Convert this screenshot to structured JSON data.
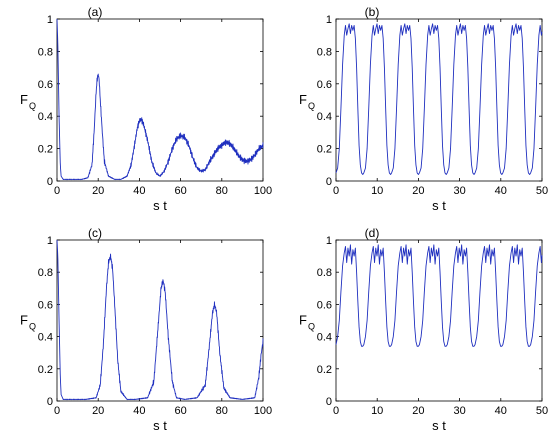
{
  "chart_data": [
    {
      "type": "line",
      "panel_label": "(a)",
      "xlabel": "s t",
      "ylabel": "F",
      "ylabel_sub": "Q",
      "xlim": [
        0,
        100
      ],
      "ylim": [
        0,
        1
      ],
      "xticks": [
        0,
        20,
        40,
        60,
        80,
        100
      ],
      "yticks": [
        0,
        0.2,
        0.4,
        0.6,
        0.8,
        1
      ],
      "grid": false,
      "line_color": "#1f2fbf",
      "noise": 0.02,
      "noise_period": 0.55,
      "series": [
        {
          "x": [
            0,
            0.4,
            1,
            1.6,
            2,
            3,
            4,
            6,
            8,
            12,
            15,
            17,
            18,
            19,
            19.5,
            20,
            20.5,
            21,
            22,
            23,
            25,
            28,
            31,
            34,
            36,
            38,
            39,
            40,
            41,
            42,
            44,
            46,
            48,
            50,
            52,
            54,
            56,
            58,
            60,
            62,
            64,
            66,
            68,
            70,
            72,
            74,
            76,
            78,
            80,
            82,
            84,
            86,
            88,
            90,
            92,
            94,
            96,
            98,
            100
          ],
          "y": [
            1.0,
            0.85,
            0.4,
            0.1,
            0.03,
            0.01,
            0.01,
            0.01,
            0.01,
            0.01,
            0.02,
            0.1,
            0.3,
            0.55,
            0.63,
            0.66,
            0.62,
            0.5,
            0.3,
            0.12,
            0.03,
            0.01,
            0.01,
            0.03,
            0.1,
            0.25,
            0.33,
            0.37,
            0.38,
            0.35,
            0.25,
            0.12,
            0.05,
            0.03,
            0.06,
            0.12,
            0.2,
            0.26,
            0.28,
            0.27,
            0.22,
            0.14,
            0.08,
            0.06,
            0.07,
            0.12,
            0.16,
            0.2,
            0.22,
            0.24,
            0.23,
            0.2,
            0.16,
            0.13,
            0.12,
            0.13,
            0.16,
            0.2,
            0.22
          ]
        }
      ]
    },
    {
      "type": "line",
      "panel_label": "(b)",
      "xlabel": "s t",
      "ylabel": "F",
      "ylabel_sub": "Q",
      "xlim": [
        0,
        50
      ],
      "ylim": [
        0,
        1
      ],
      "xticks": [
        0,
        10,
        20,
        30,
        40,
        50
      ],
      "yticks": [
        0,
        0.2,
        0.4,
        0.6,
        0.8,
        1
      ],
      "grid": false,
      "line_color": "#1f2fbf",
      "noise": 0.0,
      "noise_period": 0.5,
      "periodic": {
        "period": 6.75,
        "x_end": 50,
        "profile": {
          "t": [
            0,
            0.4,
            0.8,
            1.2,
            1.6,
            2.0,
            2.3,
            2.6,
            2.9,
            3.2,
            3.5,
            3.8,
            4.1,
            4.4,
            4.7,
            5.0,
            5.3,
            5.6,
            5.9,
            6.2,
            6.5,
            6.75
          ],
          "y": [
            0.05,
            0.08,
            0.2,
            0.45,
            0.72,
            0.9,
            0.96,
            0.9,
            0.94,
            0.97,
            0.91,
            0.96,
            0.93,
            0.96,
            0.88,
            0.7,
            0.45,
            0.22,
            0.1,
            0.05,
            0.04,
            0.05
          ]
        }
      }
    },
    {
      "type": "line",
      "panel_label": "(c)",
      "xlabel": "s t",
      "ylabel": "F",
      "ylabel_sub": "Q",
      "xlim": [
        0,
        100
      ],
      "ylim": [
        0,
        1
      ],
      "xticks": [
        0,
        20,
        40,
        60,
        80,
        100
      ],
      "yticks": [
        0,
        0.2,
        0.4,
        0.6,
        0.8,
        1
      ],
      "grid": false,
      "line_color": "#1f2fbf",
      "noise": 0.02,
      "noise_period": 0.55,
      "series": [
        {
          "x": [
            0,
            0.4,
            1,
            1.6,
            2,
            3,
            4,
            8,
            14,
            19,
            21,
            22.5,
            24,
            25,
            26,
            27,
            28,
            29.5,
            31,
            34,
            38,
            44,
            47,
            49,
            50.5,
            51.5,
            52.5,
            54,
            56,
            58,
            62,
            68,
            72,
            74,
            75.5,
            76.5,
            77.5,
            79,
            81,
            84,
            90,
            96,
            98,
            99,
            100
          ],
          "y": [
            1.0,
            0.9,
            0.5,
            0.15,
            0.04,
            0.01,
            0.01,
            0.01,
            0.01,
            0.02,
            0.1,
            0.35,
            0.7,
            0.86,
            0.9,
            0.82,
            0.6,
            0.25,
            0.06,
            0.01,
            0.01,
            0.02,
            0.12,
            0.45,
            0.7,
            0.75,
            0.68,
            0.4,
            0.12,
            0.02,
            0.01,
            0.02,
            0.1,
            0.35,
            0.55,
            0.6,
            0.55,
            0.3,
            0.08,
            0.02,
            0.01,
            0.02,
            0.15,
            0.28,
            0.37
          ]
        }
      ]
    },
    {
      "type": "line",
      "panel_label": "(d)",
      "xlabel": "s t",
      "ylabel": "F",
      "ylabel_sub": "Q",
      "xlim": [
        0,
        50
      ],
      "ylim": [
        0,
        1
      ],
      "xticks": [
        0,
        10,
        20,
        30,
        40,
        50
      ],
      "yticks": [
        0,
        0.2,
        0.4,
        0.6,
        0.8,
        1
      ],
      "grid": false,
      "line_color": "#1f2fbf",
      "noise": 0.0,
      "noise_period": 0.5,
      "periodic": {
        "period": 6.75,
        "x_end": 50,
        "profile": {
          "t": [
            0,
            0.4,
            0.8,
            1.2,
            1.6,
            2.0,
            2.3,
            2.6,
            2.9,
            3.2,
            3.5,
            3.8,
            4.1,
            4.4,
            4.7,
            5.0,
            5.3,
            5.6,
            5.9,
            6.2,
            6.5,
            6.75
          ],
          "y": [
            0.35,
            0.4,
            0.5,
            0.68,
            0.84,
            0.92,
            0.96,
            0.86,
            0.95,
            0.9,
            0.97,
            0.85,
            0.94,
            0.9,
            0.95,
            0.8,
            0.62,
            0.46,
            0.37,
            0.34,
            0.34,
            0.35
          ]
        }
      }
    }
  ]
}
